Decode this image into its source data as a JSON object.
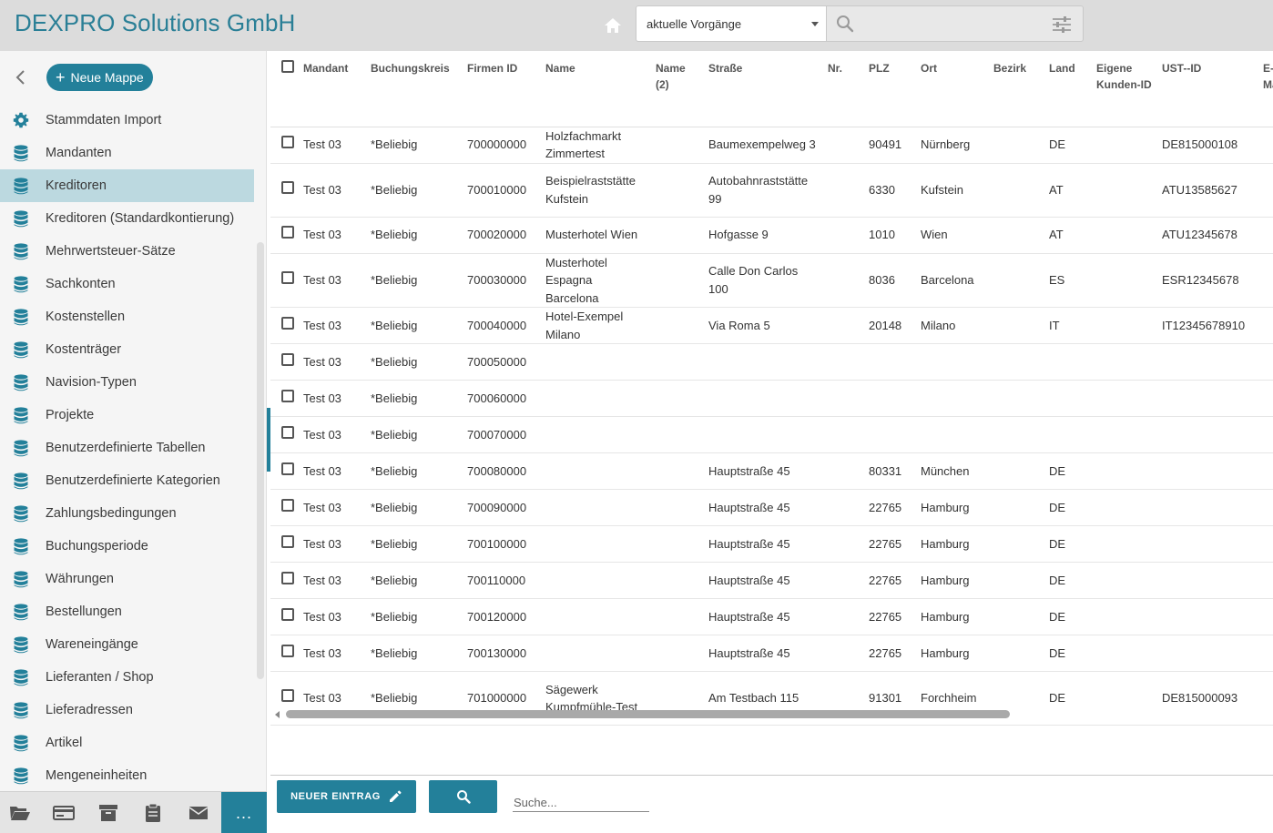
{
  "header": {
    "title": "DEXPRO Solutions GmbH",
    "filter_value": "aktuelle Vorgänge",
    "search_value": ""
  },
  "sidebar": {
    "new_folder_label": "Neue Mappe",
    "items": [
      {
        "label": "Stammdaten Import",
        "icon": "gear-icon",
        "active": false
      },
      {
        "label": "Mandanten",
        "icon": "database-icon",
        "active": false
      },
      {
        "label": "Kreditoren",
        "icon": "database-icon",
        "active": true
      },
      {
        "label": "Kreditoren (Standardkontierung)",
        "icon": "database-icon",
        "active": false
      },
      {
        "label": "Mehrwertsteuer-Sätze",
        "icon": "database-icon",
        "active": false
      },
      {
        "label": "Sachkonten",
        "icon": "database-icon",
        "active": false
      },
      {
        "label": "Kostenstellen",
        "icon": "database-icon",
        "active": false
      },
      {
        "label": "Kostenträger",
        "icon": "database-icon",
        "active": false
      },
      {
        "label": "Navision-Typen",
        "icon": "database-icon",
        "active": false
      },
      {
        "label": "Projekte",
        "icon": "database-icon",
        "active": false
      },
      {
        "label": "Benutzerdefinierte Tabellen",
        "icon": "database-icon",
        "active": false
      },
      {
        "label": "Benutzerdefinierte Kategorien",
        "icon": "database-icon",
        "active": false
      },
      {
        "label": "Zahlungsbedingungen",
        "icon": "database-icon",
        "active": false
      },
      {
        "label": "Buchungsperiode",
        "icon": "database-icon",
        "active": false
      },
      {
        "label": "Währungen",
        "icon": "database-icon",
        "active": false
      },
      {
        "label": "Bestellungen",
        "icon": "database-icon",
        "active": false
      },
      {
        "label": "Wareneingänge",
        "icon": "database-icon",
        "active": false
      },
      {
        "label": "Lieferanten / Shop",
        "icon": "database-icon",
        "active": false
      },
      {
        "label": "Lieferadressen",
        "icon": "database-icon",
        "active": false
      },
      {
        "label": "Artikel",
        "icon": "database-icon",
        "active": false
      },
      {
        "label": "Mengeneinheiten",
        "icon": "database-icon",
        "active": false
      }
    ],
    "footer_icons": [
      "folder-open-icon",
      "credit-card-icon",
      "archive-icon",
      "clipboard-icon",
      "mail-icon"
    ],
    "more_label": "..."
  },
  "table": {
    "columns": [
      "Mandant",
      "Buchungskreis",
      "Firmen ID",
      "Name",
      "Name (2)",
      "Straße",
      "Nr.",
      "PLZ",
      "Ort",
      "Bezirk",
      "Land",
      "Eigene Kunden-ID",
      "UST--ID",
      "E-Mail"
    ],
    "rows": [
      {
        "mandant": "Test 03",
        "buchungskreis": "*Beliebig",
        "firmen_id": "700000000",
        "name": "Holzfachmarkt Zimmertest",
        "name2": "",
        "strasse": "Baumexempelweg 3",
        "nr": "",
        "plz": "90491",
        "ort": "Nürnberg",
        "bezirk": "",
        "land": "DE",
        "kunden_id": "",
        "ust_id": "DE815000108",
        "email": ""
      },
      {
        "mandant": "Test 03",
        "buchungskreis": "*Beliebig",
        "firmen_id": "700010000",
        "name": "Beispielraststätte Kufstein",
        "name2": "",
        "strasse": "Autobahnraststätte 99",
        "nr": "",
        "plz": "6330",
        "ort": "Kufstein",
        "bezirk": "",
        "land": "AT",
        "kunden_id": "",
        "ust_id": "ATU13585627",
        "email": ""
      },
      {
        "mandant": "Test 03",
        "buchungskreis": "*Beliebig",
        "firmen_id": "700020000",
        "name": "Musterhotel Wien",
        "name2": "",
        "strasse": "Hofgasse 9",
        "nr": "",
        "plz": "1010",
        "ort": "Wien",
        "bezirk": "",
        "land": "AT",
        "kunden_id": "",
        "ust_id": "ATU12345678",
        "email": ""
      },
      {
        "mandant": "Test 03",
        "buchungskreis": "*Beliebig",
        "firmen_id": "700030000",
        "name": "Musterhotel Espagna Barcelona",
        "name2": "",
        "strasse": "Calle Don Carlos 100",
        "nr": "",
        "plz": "8036",
        "ort": "Barcelona",
        "bezirk": "",
        "land": "ES",
        "kunden_id": "",
        "ust_id": "ESR12345678",
        "email": ""
      },
      {
        "mandant": "Test 03",
        "buchungskreis": "*Beliebig",
        "firmen_id": "700040000",
        "name": "Hotel-Exempel Milano",
        "name2": "",
        "strasse": "Via Roma 5",
        "nr": "",
        "plz": "20148",
        "ort": "Milano",
        "bezirk": "",
        "land": "IT",
        "kunden_id": "",
        "ust_id": "IT12345678910",
        "email": ""
      },
      {
        "mandant": "Test 03",
        "buchungskreis": "*Beliebig",
        "firmen_id": "700050000",
        "name": "",
        "name2": "",
        "strasse": "",
        "nr": "",
        "plz": "",
        "ort": "",
        "bezirk": "",
        "land": "",
        "kunden_id": "",
        "ust_id": "",
        "email": ""
      },
      {
        "mandant": "Test 03",
        "buchungskreis": "*Beliebig",
        "firmen_id": "700060000",
        "name": "",
        "name2": "",
        "strasse": "",
        "nr": "",
        "plz": "",
        "ort": "",
        "bezirk": "",
        "land": "",
        "kunden_id": "",
        "ust_id": "",
        "email": ""
      },
      {
        "mandant": "Test 03",
        "buchungskreis": "*Beliebig",
        "firmen_id": "700070000",
        "name": "",
        "name2": "",
        "strasse": "",
        "nr": "",
        "plz": "",
        "ort": "",
        "bezirk": "",
        "land": "",
        "kunden_id": "",
        "ust_id": "",
        "email": ""
      },
      {
        "mandant": "Test 03",
        "buchungskreis": "*Beliebig",
        "firmen_id": "700080000",
        "name": "",
        "name2": "",
        "strasse": "Hauptstraße 45",
        "nr": "",
        "plz": "80331",
        "ort": "München",
        "bezirk": "",
        "land": "DE",
        "kunden_id": "",
        "ust_id": "",
        "email": ""
      },
      {
        "mandant": "Test 03",
        "buchungskreis": "*Beliebig",
        "firmen_id": "700090000",
        "name": "",
        "name2": "",
        "strasse": "Hauptstraße 45",
        "nr": "",
        "plz": "22765",
        "ort": "Hamburg",
        "bezirk": "",
        "land": "DE",
        "kunden_id": "",
        "ust_id": "",
        "email": ""
      },
      {
        "mandant": "Test 03",
        "buchungskreis": "*Beliebig",
        "firmen_id": "700100000",
        "name": "",
        "name2": "",
        "strasse": "Hauptstraße 45",
        "nr": "",
        "plz": "22765",
        "ort": "Hamburg",
        "bezirk": "",
        "land": "DE",
        "kunden_id": "",
        "ust_id": "",
        "email": ""
      },
      {
        "mandant": "Test 03",
        "buchungskreis": "*Beliebig",
        "firmen_id": "700110000",
        "name": "",
        "name2": "",
        "strasse": "Hauptstraße 45",
        "nr": "",
        "plz": "22765",
        "ort": "Hamburg",
        "bezirk": "",
        "land": "DE",
        "kunden_id": "",
        "ust_id": "",
        "email": ""
      },
      {
        "mandant": "Test 03",
        "buchungskreis": "*Beliebig",
        "firmen_id": "700120000",
        "name": "",
        "name2": "",
        "strasse": "Hauptstraße 45",
        "nr": "",
        "plz": "22765",
        "ort": "Hamburg",
        "bezirk": "",
        "land": "DE",
        "kunden_id": "",
        "ust_id": "",
        "email": ""
      },
      {
        "mandant": "Test 03",
        "buchungskreis": "*Beliebig",
        "firmen_id": "700130000",
        "name": "",
        "name2": "",
        "strasse": "Hauptstraße 45",
        "nr": "",
        "plz": "22765",
        "ort": "Hamburg",
        "bezirk": "",
        "land": "DE",
        "kunden_id": "",
        "ust_id": "",
        "email": ""
      },
      {
        "mandant": "Test 03",
        "buchungskreis": "*Beliebig",
        "firmen_id": "701000000",
        "name": "Sägewerk Kumpfmühle-Test",
        "name2": "",
        "strasse": "Am Testbach 115",
        "nr": "",
        "plz": "91301",
        "ort": "Forchheim",
        "bezirk": "",
        "land": "DE",
        "kunden_id": "",
        "ust_id": "DE815000093",
        "email": ""
      }
    ]
  },
  "bottombar": {
    "new_entry_label": "NEUER EINTRAG",
    "search_placeholder": "Suche..."
  },
  "colors": {
    "accent": "#23809a",
    "title": "#2a7f96",
    "active_nav": "#bcd9e0",
    "header_bg": "#dcdcdc"
  }
}
